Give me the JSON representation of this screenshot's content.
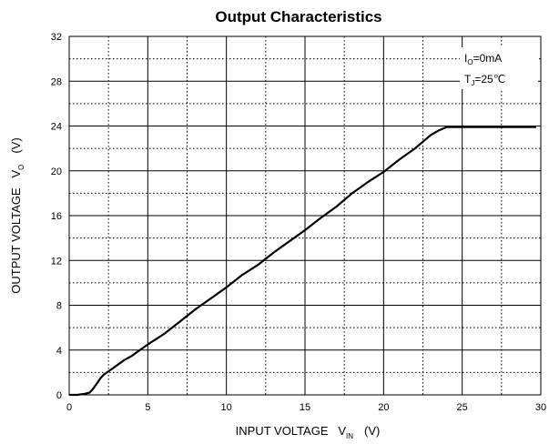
{
  "chart_data": {
    "type": "line",
    "title": "Output Characteristics",
    "xlabel": {
      "main": "INPUT VOLTAGE   V",
      "sub": "IN",
      "unit": "(V)"
    },
    "ylabel": {
      "main": "OUTPUT VOLTAGE   V",
      "sub": "O",
      "unit": "(V)"
    },
    "xlim": [
      0,
      30
    ],
    "ylim": [
      0,
      32
    ],
    "x_ticks": [
      "0",
      "5",
      "10",
      "15",
      "20",
      "25",
      "30"
    ],
    "y_ticks": [
      "0",
      "4",
      "8",
      "12",
      "16",
      "20",
      "24",
      "28",
      "32"
    ],
    "grid": {
      "major_solid": true,
      "minor_dotted": true
    },
    "annotations": [
      {
        "main": "I",
        "sub": "O",
        "rest": "=0mA"
      },
      {
        "main": "T",
        "sub": "J",
        "rest": "=25℃"
      }
    ],
    "series": [
      {
        "x": [
          0,
          0.5,
          1.0,
          1.3,
          1.5,
          1.8,
          2.0,
          2.2,
          2.5,
          3.0,
          3.5,
          4.0,
          5.0,
          6.0,
          7.0,
          8.0,
          9.0,
          10.0,
          11.0,
          12.0,
          13.0,
          14.0,
          15.0,
          16.0,
          17.0,
          18.0,
          19.0,
          20.0,
          21.0,
          22.0,
          23.0,
          23.5,
          24.0,
          25.0,
          26.0,
          27.0,
          28.0,
          29.0,
          29.7
        ],
        "values": [
          0,
          0,
          0.1,
          0.2,
          0.5,
          1.1,
          1.5,
          1.8,
          2.1,
          2.6,
          3.1,
          3.5,
          4.5,
          5.4,
          6.5,
          7.6,
          8.6,
          9.6,
          10.7,
          11.6,
          12.7,
          13.7,
          14.7,
          15.8,
          16.8,
          18.0,
          19.0,
          19.9,
          21.0,
          22.0,
          23.2,
          23.6,
          23.9,
          23.9,
          23.9,
          23.9,
          23.9,
          23.9,
          23.9
        ]
      }
    ]
  }
}
